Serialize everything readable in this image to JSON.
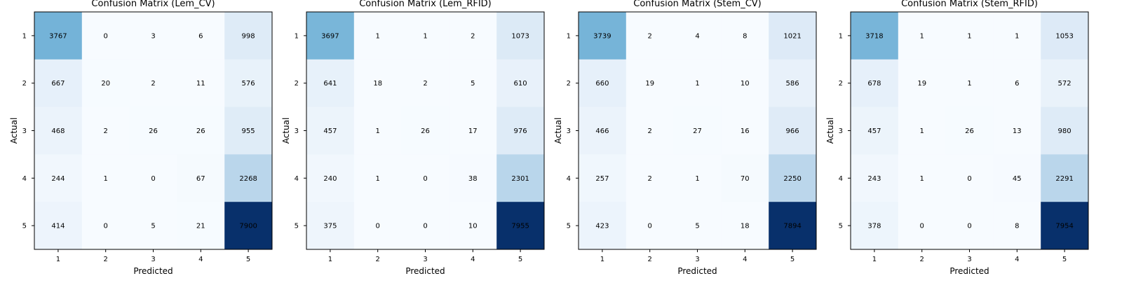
{
  "chart_data": [
    {
      "type": "heatmap",
      "title": "Confusion Matrix (Lem_CV)",
      "xlabel": "Predicted",
      "ylabel": "Actual",
      "x_categories": [
        "1",
        "2",
        "3",
        "4",
        "5"
      ],
      "y_categories": [
        "1",
        "2",
        "3",
        "4",
        "5"
      ],
      "colormap": "Blues",
      "values": [
        [
          3767,
          0,
          3,
          6,
          998
        ],
        [
          667,
          20,
          2,
          11,
          576
        ],
        [
          468,
          2,
          26,
          26,
          955
        ],
        [
          244,
          1,
          0,
          67,
          2268
        ],
        [
          414,
          0,
          5,
          21,
          7900
        ]
      ]
    },
    {
      "type": "heatmap",
      "title": "Confusion Matrix (Lem_RFID)",
      "xlabel": "Predicted",
      "ylabel": "Actual",
      "x_categories": [
        "1",
        "2",
        "3",
        "4",
        "5"
      ],
      "y_categories": [
        "1",
        "2",
        "3",
        "4",
        "5"
      ],
      "colormap": "Blues",
      "values": [
        [
          3697,
          1,
          1,
          2,
          1073
        ],
        [
          641,
          18,
          2,
          5,
          610
        ],
        [
          457,
          1,
          26,
          17,
          976
        ],
        [
          240,
          1,
          0,
          38,
          2301
        ],
        [
          375,
          0,
          0,
          10,
          7955
        ]
      ]
    },
    {
      "type": "heatmap",
      "title": "Confusion Matrix (Stem_CV)",
      "xlabel": "Predicted",
      "ylabel": "Actual",
      "x_categories": [
        "1",
        "2",
        "3",
        "4",
        "5"
      ],
      "y_categories": [
        "1",
        "2",
        "3",
        "4",
        "5"
      ],
      "colormap": "Blues",
      "values": [
        [
          3739,
          2,
          4,
          8,
          1021
        ],
        [
          660,
          19,
          1,
          10,
          586
        ],
        [
          466,
          2,
          27,
          16,
          966
        ],
        [
          257,
          2,
          1,
          70,
          2250
        ],
        [
          423,
          0,
          5,
          18,
          7894
        ]
      ]
    },
    {
      "type": "heatmap",
      "title": "Confusion Matrix (Stem_RFID)",
      "xlabel": "Predicted",
      "ylabel": "Actual",
      "x_categories": [
        "1",
        "2",
        "3",
        "4",
        "5"
      ],
      "y_categories": [
        "1",
        "2",
        "3",
        "4",
        "5"
      ],
      "colormap": "Blues",
      "values": [
        [
          3718,
          1,
          1,
          1,
          1053
        ],
        [
          678,
          19,
          1,
          6,
          572
        ],
        [
          457,
          1,
          26,
          13,
          980
        ],
        [
          243,
          1,
          0,
          45,
          2291
        ],
        [
          378,
          0,
          0,
          8,
          7954
        ]
      ]
    }
  ]
}
